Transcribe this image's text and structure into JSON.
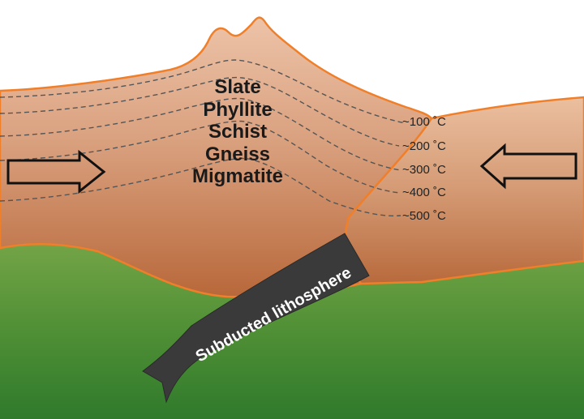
{
  "rock_types": [
    "Slate",
    "Phyllite",
    "Schist",
    "Gneiss",
    "Migmatite"
  ],
  "isotherms": [
    "~100 ˚C",
    "~200 ˚C",
    "~300 ˚C",
    "~400 ˚C",
    "~500 ˚C"
  ],
  "slab_label": "Subducted lithosphere",
  "arrows": [
    "compression-arrow-left",
    "compression-arrow-right"
  ],
  "colors": {
    "mantle_green": "#5d9a3c",
    "crust_orange": "#d9a07e",
    "crust_outline": "#f07f2a",
    "slab": "#3a3a3a"
  }
}
